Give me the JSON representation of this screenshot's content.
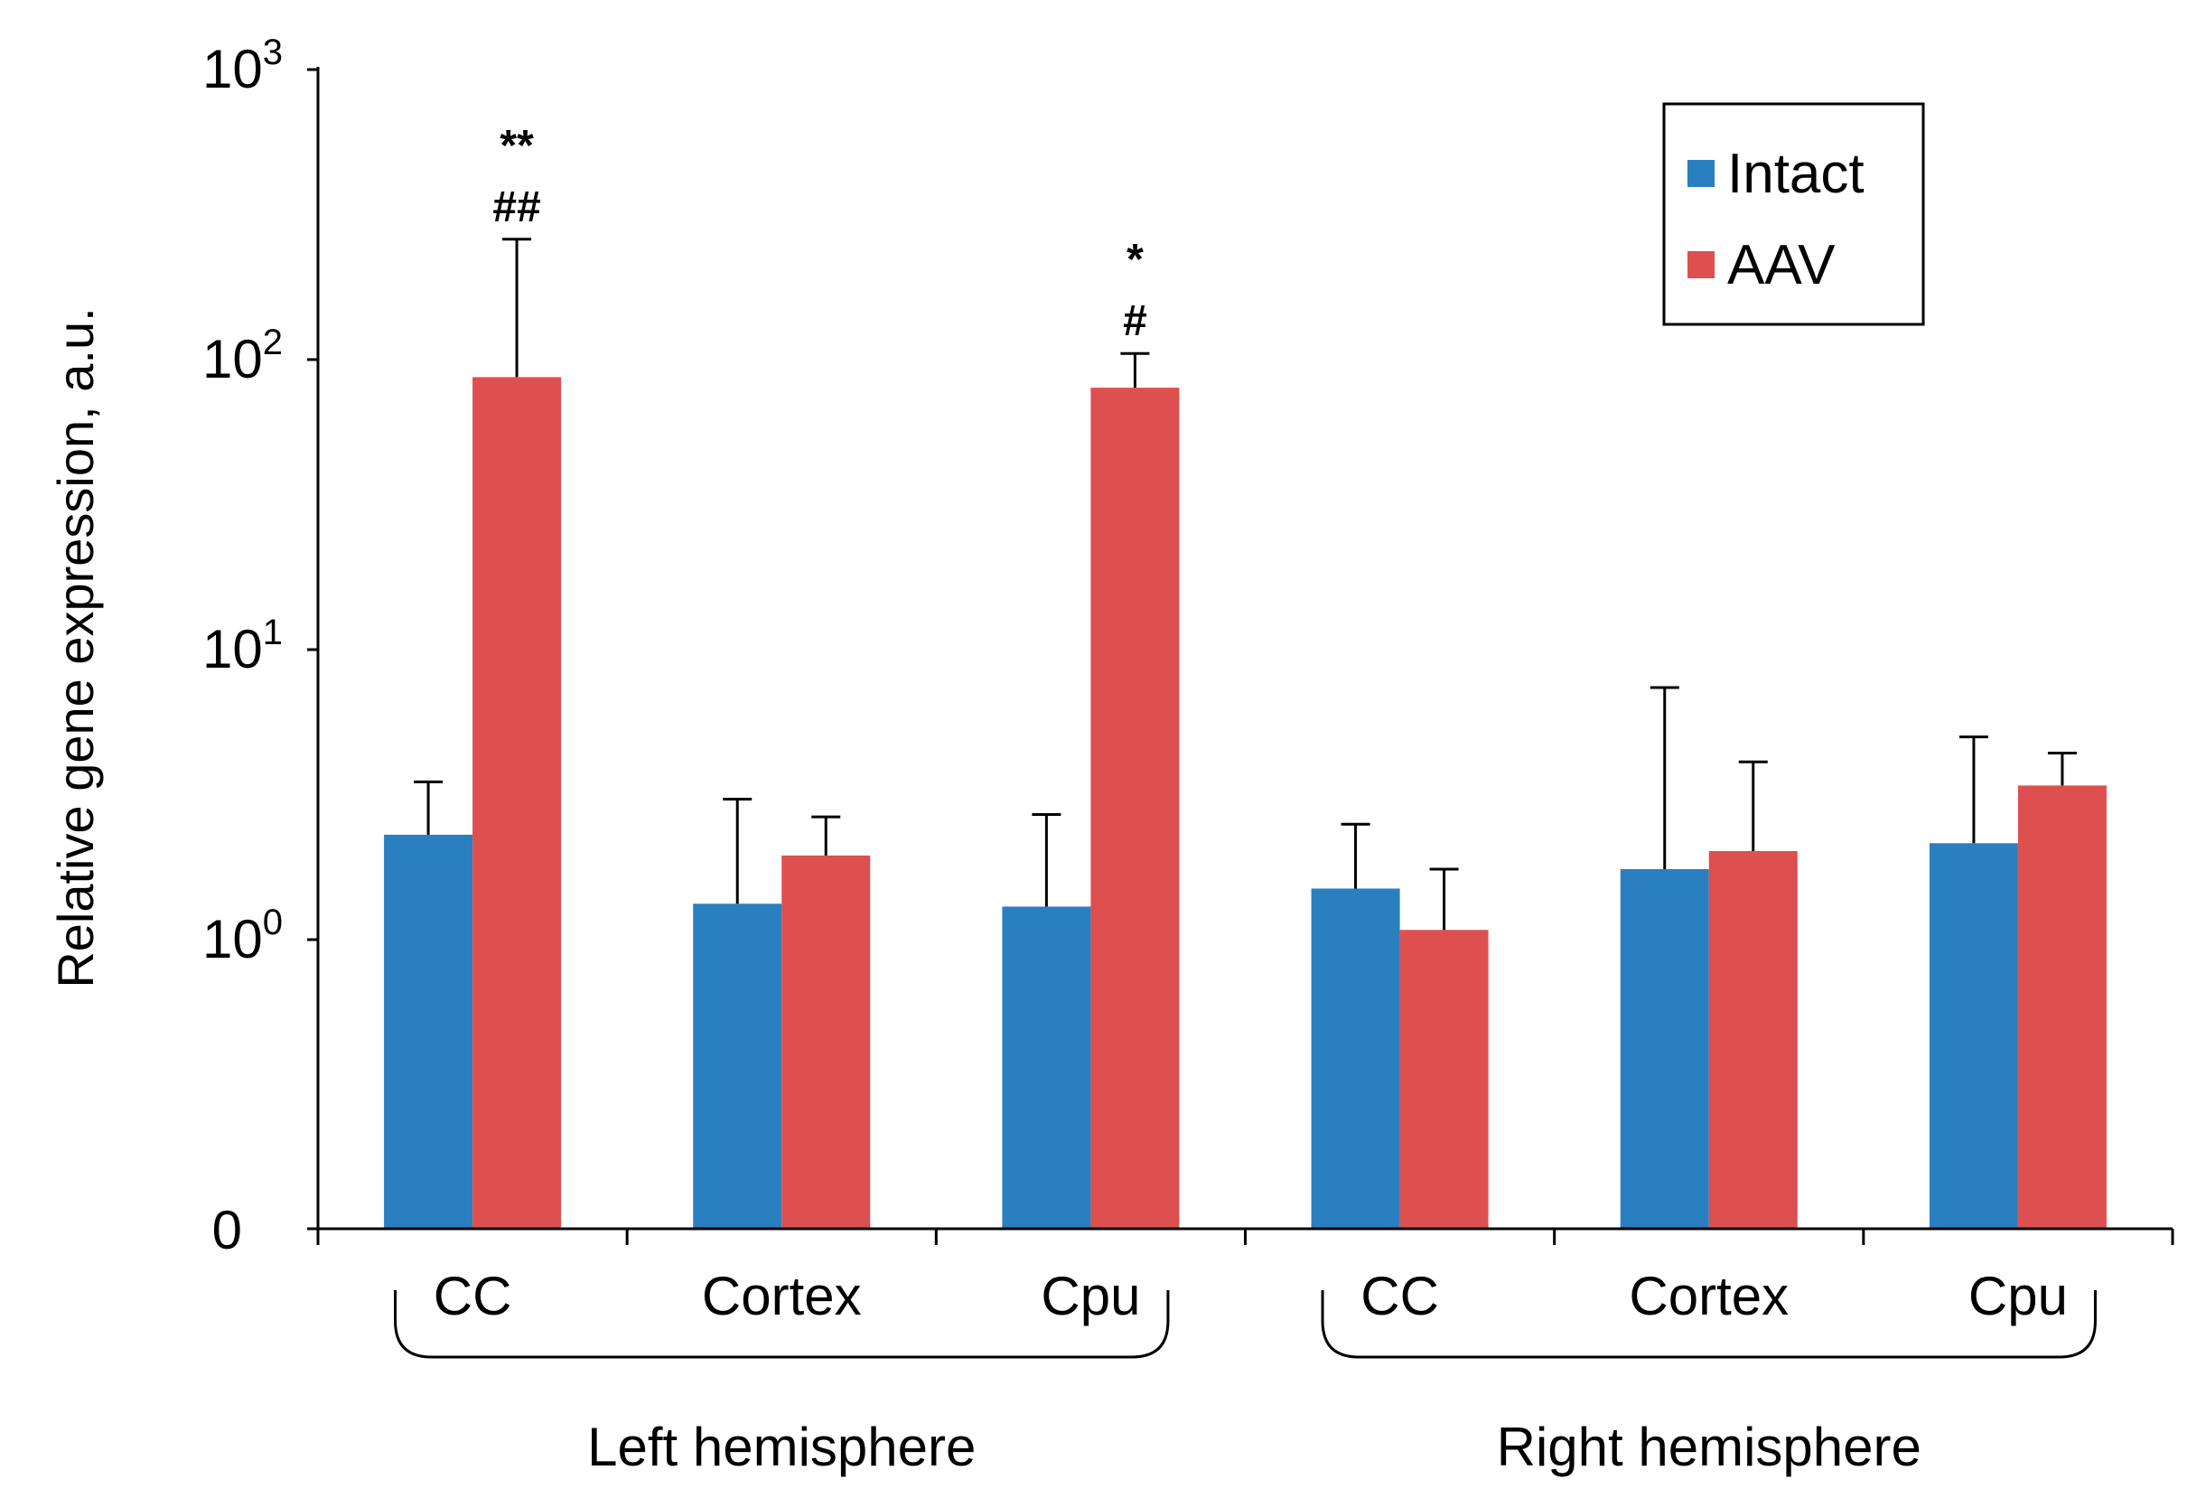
{
  "chart_data": {
    "type": "bar",
    "yscale": "log",
    "ylabel": "Relative gene expression, a.u.",
    "ylim_label_bottom": "0",
    "yticks": [
      {
        "base": "10",
        "exp": "0",
        "value": 1
      },
      {
        "base": "10",
        "exp": "1",
        "value": 10
      },
      {
        "base": "10",
        "exp": "2",
        "value": 100
      },
      {
        "base": "10",
        "exp": "3",
        "value": 1000
      }
    ],
    "categories": [
      "CC",
      "Cortex",
      "Cpu",
      "CC",
      "Cortex",
      "Cpu"
    ],
    "groups": [
      {
        "label": "Left hemisphere",
        "categories": [
          0,
          1,
          2
        ]
      },
      {
        "label": "Right hemisphere",
        "categories": [
          3,
          4,
          5
        ]
      }
    ],
    "series": [
      {
        "name": "Intact",
        "color": "#2a7fc0",
        "values": [
          2.3,
          1.33,
          1.3,
          1.5,
          1.75,
          2.15
        ],
        "error": [
          3.5,
          3.05,
          2.7,
          2.5,
          7.4,
          5.0
        ]
      },
      {
        "name": "AAV",
        "color": "#de4f4f",
        "values": [
          87,
          1.95,
          80,
          1.08,
          2.02,
          3.4
        ],
        "error": [
          260,
          2.65,
          105,
          1.75,
          4.1,
          4.4
        ]
      }
    ],
    "annotations": [
      {
        "category": 0,
        "series": 1,
        "lines": [
          "**",
          "##"
        ]
      },
      {
        "category": 2,
        "series": 1,
        "lines": [
          "*",
          "#"
        ]
      }
    ],
    "legend": {
      "position": "top-right"
    }
  }
}
